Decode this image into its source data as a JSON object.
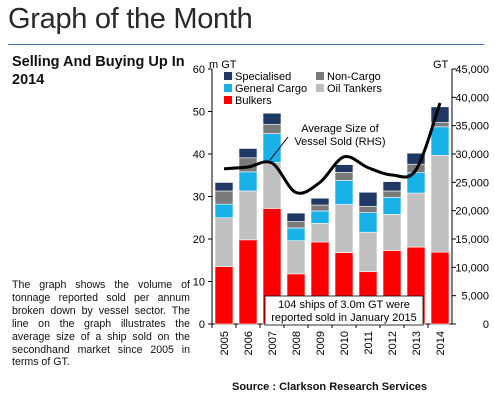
{
  "page": {
    "title": "Graph of the Month",
    "subtitle": "Selling And Buying Up In 2014",
    "description": "The graph shows the volume of tonnage reported sold per annum broken down by vessel sector. The line on the graph illustrates the average size of a ship sold on the secondhand market since 2005 in terms of GT.",
    "source": "Source : Clarkson Research Services",
    "accent_color": "#3f6fb5"
  },
  "chart_data": {
    "type": "bar",
    "stacked": true,
    "categories": [
      "2005",
      "2006",
      "2007",
      "2008",
      "2009",
      "2010",
      "2011",
      "2012",
      "2013",
      "2014"
    ],
    "ylabel_left": "m GT",
    "ylabel_right": "GT",
    "ylim_left": [
      0,
      60
    ],
    "ylim_right": [
      0,
      45000
    ],
    "yticks_left": [
      "0",
      "10",
      "20",
      "30",
      "40",
      "50",
      "60"
    ],
    "yticks_right": [
      "0",
      "5,000",
      "10,000",
      "15,000",
      "20,000",
      "25,000",
      "30,000",
      "35,000",
      "40,000",
      "45,000"
    ],
    "grid": false,
    "legend_position": "top-left",
    "series": [
      {
        "name": "Bulkers",
        "color": "#ff0000",
        "values": [
          13.5,
          19.8,
          27.2,
          11.8,
          19.3,
          16.8,
          12.3,
          17.3,
          18.1,
          16.9
        ]
      },
      {
        "name": "Oil Tankers",
        "color": "#c0c0c0",
        "values": [
          11.5,
          11.5,
          10.8,
          7.8,
          4.4,
          11.3,
          9.3,
          8.5,
          12.7,
          22.8
        ]
      },
      {
        "name": "General Cargo",
        "color": "#19b0e8",
        "values": [
          3.2,
          4.5,
          6.8,
          3.0,
          2.9,
          5.7,
          4.6,
          4.0,
          4.8,
          6.7
        ]
      },
      {
        "name": "Non-Cargo",
        "color": "#7a7a7a",
        "values": [
          3.1,
          3.3,
          2.2,
          1.5,
          1.4,
          1.9,
          1.5,
          1.5,
          2.0,
          1.0
        ]
      },
      {
        "name": "Specialised",
        "color": "#1f3864",
        "values": [
          2.0,
          2.2,
          2.6,
          2.0,
          1.6,
          1.8,
          3.3,
          2.2,
          2.6,
          3.7
        ]
      }
    ],
    "line": {
      "name": "Average Size of Vessel Sold (RHS)",
      "axis": "right",
      "x": [
        "2005",
        "2006",
        "2007",
        "2008",
        "2009",
        "2010",
        "2011",
        "2012",
        "2013",
        "2014"
      ],
      "values": [
        27400,
        27700,
        28400,
        23200,
        25000,
        29500,
        27600,
        26300,
        27200,
        39000
      ]
    },
    "annotations": [
      {
        "text": "Average Size of Vessel Sold (RHS)"
      },
      {
        "text": "104 ships of 3.0m GT were reported sold in January 2015"
      }
    ]
  }
}
